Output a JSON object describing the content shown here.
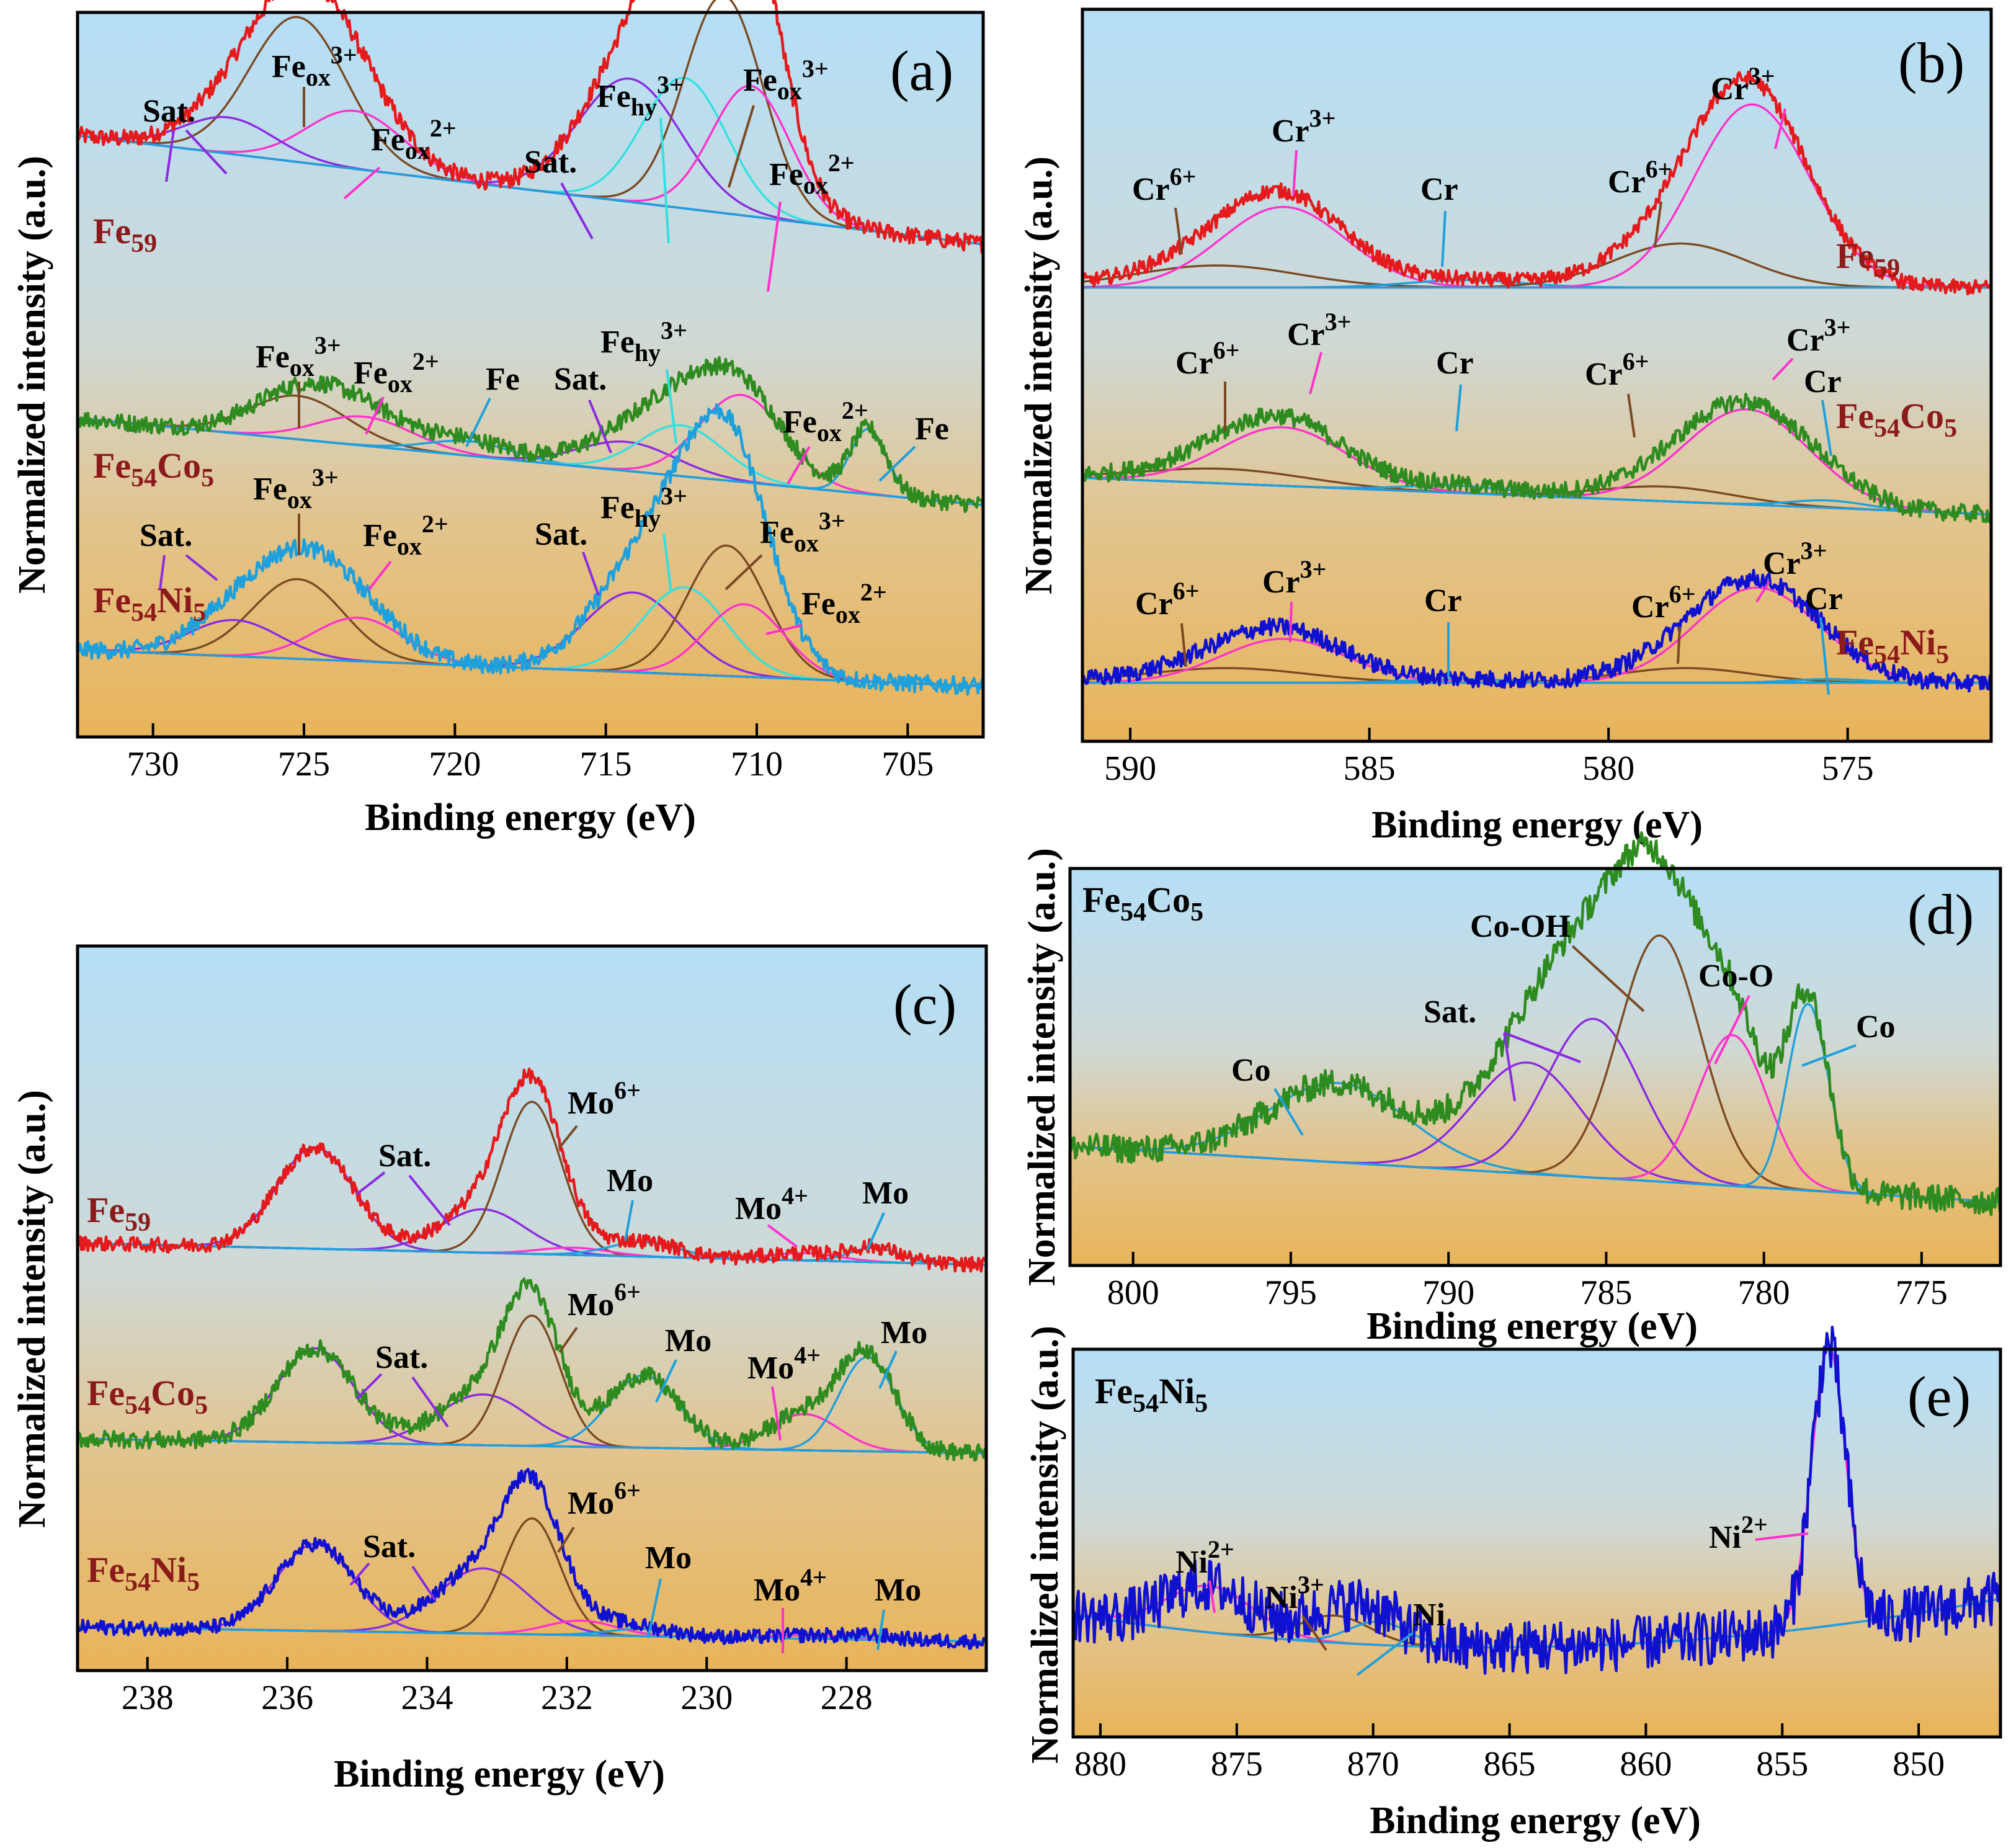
{
  "chart_data": [
    {
      "panel": "(a)",
      "type": "line",
      "xlabel": "Binding energy (eV)",
      "ylabel": "Normalized intensity (a.u.)",
      "xlim": [
        732.5,
        702.5
      ],
      "ticks": [
        730,
        725,
        720,
        715,
        710,
        705
      ],
      "tick_labels": [
        "730",
        "725",
        "720",
        "715",
        "710",
        "705"
      ],
      "series": [
        {
          "name": "Fe59",
          "sub": "59",
          "color": "#e41a1c",
          "offset": 0.68,
          "base_hi": 0.15,
          "base_lo": 0.0,
          "noise": 0.012,
          "peaks": [
            [
              725.2,
              0.2,
              1.6,
              "#7b4a24"
            ],
            [
              723.3,
              0.08,
              1.6,
              "#ff33cc"
            ],
            [
              727.5,
              0.05,
              1.5,
              "#8a2be2"
            ],
            [
              714.2,
              0.17,
              1.7,
              "#8a2be2"
            ],
            [
              712.4,
              0.18,
              1.4,
              "#33e0e0"
            ],
            [
              711.1,
              0.3,
              1.3,
              "#7b4a24"
            ],
            [
              710.2,
              0.18,
              1.3,
              "#ff33cc"
            ]
          ]
        },
        {
          "name": "Fe54Co5",
          "sub": "54",
          "color": "#2e8b1f",
          "offset": 0.38,
          "base_hi": 0.06,
          "base_lo": -0.06,
          "noise": 0.012,
          "peaks": [
            [
              725.2,
              0.06,
              1.6,
              "#7b4a24"
            ],
            [
              723.0,
              0.04,
              1.6,
              "#ff33cc"
            ],
            [
              719.5,
              0.02,
              1.4,
              "#1ea0dc"
            ],
            [
              714.3,
              0.04,
              1.6,
              "#8a2be2"
            ],
            [
              712.5,
              0.07,
              1.4,
              "#33e0e0"
            ],
            [
              710.5,
              0.12,
              1.4,
              "#ff33cc"
            ],
            [
              706.3,
              0.09,
              0.6,
              "#1ea0dc"
            ]
          ]
        },
        {
          "name": "Fe54Ni5",
          "sub": "54",
          "color": "#1ea0dc",
          "offset": 0.1,
          "base_hi": 0.02,
          "base_lo": -0.03,
          "noise": 0.012,
          "peaks": [
            [
              725.2,
              0.11,
              1.5,
              "#7b4a24"
            ],
            [
              723.2,
              0.06,
              1.5,
              "#ff33cc"
            ],
            [
              727.3,
              0.05,
              1.5,
              "#8a2be2"
            ],
            [
              714.1,
              0.11,
              1.6,
              "#8a2be2"
            ],
            [
              712.4,
              0.12,
              1.4,
              "#33e0e0"
            ],
            [
              711.0,
              0.18,
              1.3,
              "#7b4a24"
            ],
            [
              710.4,
              0.1,
              1.3,
              "#ff33cc"
            ]
          ]
        }
      ]
    },
    {
      "panel": "(b)",
      "type": "line",
      "xlabel": "Binding energy (eV)",
      "ylabel": "Normalized intensity (a.u.)",
      "xlim": [
        591.0,
        572.0
      ],
      "ticks": [
        590,
        585,
        580,
        575
      ],
      "tick_labels": [
        "590",
        "585",
        "580",
        "575"
      ],
      "series": [
        {
          "name": "Fe59",
          "sub": "59",
          "color": "#e41a1c",
          "offset": 0.62,
          "base_hi": 0.0,
          "base_lo": 0.0,
          "noise": 0.01,
          "peaks": [
            [
              588.2,
              0.03,
              1.7,
              "#7b4a24"
            ],
            [
              586.8,
              0.11,
              1.3,
              "#ff33cc"
            ],
            [
              583.0,
              0.01,
              1.2,
              "#1ea0dc"
            ],
            [
              578.5,
              0.06,
              1.4,
              "#7b4a24"
            ],
            [
              577.0,
              0.25,
              1.2,
              "#ff33cc"
            ]
          ]
        },
        {
          "name": "Fe54Co5",
          "sub": "54",
          "color": "#2e8b1f",
          "offset": 0.36,
          "base_hi": 0.0,
          "base_lo": -0.05,
          "noise": 0.012,
          "peaks": [
            [
              588.0,
              0.02,
              1.7,
              "#7b4a24"
            ],
            [
              586.8,
              0.08,
              1.3,
              "#ff33cc"
            ],
            [
              583.1,
              0.01,
              1.1,
              "#1ea0dc"
            ],
            [
              578.8,
              0.02,
              1.4,
              "#7b4a24"
            ],
            [
              577.1,
              0.13,
              1.3,
              "#ff33cc"
            ],
            [
              575.4,
              0.01,
              0.8,
              "#1ea0dc"
            ]
          ]
        },
        {
          "name": "Fe54Ni5",
          "sub": "54",
          "color": "#1010d0",
          "offset": 0.08,
          "base_hi": 0.0,
          "base_lo": 0.0,
          "noise": 0.012,
          "peaks": [
            [
              588.0,
              0.02,
              1.7,
              "#7b4a24"
            ],
            [
              586.8,
              0.06,
              1.3,
              "#ff33cc"
            ],
            [
              583.1,
              0.005,
              1.1,
              "#1ea0dc"
            ],
            [
              578.4,
              0.02,
              1.4,
              "#7b4a24"
            ],
            [
              576.9,
              0.13,
              1.3,
              "#ff33cc"
            ],
            [
              575.4,
              0.005,
              0.8,
              "#1ea0dc"
            ]
          ]
        }
      ]
    },
    {
      "panel": "(c)",
      "type": "line",
      "xlabel": "Binding energy (eV)",
      "ylabel": "Normalized intensity (a.u.)",
      "xlim": [
        239.0,
        226.0
      ],
      "ticks": [
        238,
        236,
        234,
        232,
        230,
        228
      ],
      "tick_labels": [
        "238",
        "236",
        "234",
        "232",
        "230",
        "228"
      ],
      "series": [
        {
          "name": "Fe59",
          "sub": "59",
          "color": "#e41a1c",
          "offset": 0.58,
          "base_hi": 0.01,
          "base_lo": -0.02,
          "noise": 0.01,
          "peaks": [
            [
              235.6,
              0.14,
              0.55,
              "#8a2be2"
            ],
            [
              233.2,
              0.06,
              0.6,
              "#8a2be2"
            ],
            [
              232.5,
              0.21,
              0.42,
              "#7b4a24"
            ],
            [
              231.9,
              0.01,
              0.5,
              "#ff33cc"
            ],
            [
              230.9,
              0.02,
              0.5,
              "#1ea0dc"
            ],
            [
              228.6,
              0.01,
              0.5,
              "#ff33cc"
            ],
            [
              227.6,
              0.02,
              0.35,
              "#1ea0dc"
            ]
          ]
        },
        {
          "name": "Fe54Co5",
          "sub": "54",
          "color": "#2e8b1f",
          "offset": 0.31,
          "base_hi": 0.01,
          "base_lo": -0.01,
          "noise": 0.012,
          "peaks": [
            [
              235.6,
              0.13,
              0.55,
              "#8a2be2"
            ],
            [
              233.2,
              0.07,
              0.65,
              "#8a2be2"
            ],
            [
              232.5,
              0.18,
              0.4,
              "#7b4a24"
            ],
            [
              230.9,
              0.1,
              0.5,
              "#1ea0dc"
            ],
            [
              228.6,
              0.05,
              0.5,
              "#ff33cc"
            ],
            [
              227.7,
              0.13,
              0.4,
              "#1ea0dc"
            ]
          ]
        },
        {
          "name": "Fe54Ni5",
          "sub": "54",
          "color": "#1010d0",
          "offset": 0.05,
          "base_hi": 0.01,
          "base_lo": -0.01,
          "noise": 0.01,
          "peaks": [
            [
              235.6,
              0.12,
              0.55,
              "#8a2be2"
            ],
            [
              233.2,
              0.09,
              0.65,
              "#8a2be2"
            ],
            [
              232.5,
              0.16,
              0.4,
              "#7b4a24"
            ],
            [
              231.8,
              0.02,
              0.5,
              "#ff33cc"
            ],
            [
              230.9,
              0.01,
              0.5,
              "#1ea0dc"
            ],
            [
              228.5,
              0.005,
              0.5,
              "#ff33cc"
            ],
            [
              227.6,
              0.005,
              0.35,
              "#1ea0dc"
            ]
          ]
        }
      ]
    },
    {
      "panel": "(d)",
      "type": "line",
      "title": "Fe54Co5",
      "xlabel": "Binding energy (eV)",
      "ylabel": "Normalized intensity (a.u.)",
      "xlim": [
        802.0,
        772.5
      ],
      "ticks": [
        800,
        795,
        790,
        785,
        780,
        775
      ],
      "tick_labels": [
        "800",
        "795",
        "790",
        "785",
        "780",
        "775"
      ],
      "series": [
        {
          "name": "Fe54Co5",
          "color": "#2e8b1f",
          "offset": 0.22,
          "base_hi": 0.08,
          "base_lo": -0.06,
          "noise": 0.035,
          "peaks": [
            [
              793.5,
              0.2,
              2.2,
              "#1ea0dc"
            ],
            [
              787.5,
              0.28,
              1.7,
              "#8a2be2"
            ],
            [
              785.4,
              0.4,
              1.5,
              "#8a2be2"
            ],
            [
              783.3,
              0.62,
              1.3,
              "#7b4a24"
            ],
            [
              781.0,
              0.38,
              1.1,
              "#ff33cc"
            ],
            [
              778.6,
              0.47,
              0.65,
              "#1ea0dc"
            ]
          ]
        }
      ]
    },
    {
      "panel": "(e)",
      "type": "line",
      "title": "Fe54Ni5",
      "xlabel": "Binding energy (eV)",
      "ylabel": "Normalized intensity (a.u.)",
      "xlim": [
        881.0,
        847.0
      ],
      "ticks": [
        880,
        875,
        870,
        865,
        860,
        855,
        850
      ],
      "tick_labels": [
        "880",
        "875",
        "870",
        "865",
        "860",
        "855",
        "850"
      ],
      "series": [
        {
          "name": "Fe54Ni5",
          "color": "#1010d0",
          "offset": 0.22,
          "base_hi": 0.02,
          "base_lo": 0.0,
          "noise": 0.07,
          "trend_x": 866.5,
          "trend_k": 0.0012,
          "peaks": [
            [
              876.0,
              0.12,
              1.6,
              "#ff33cc"
            ],
            [
              871.4,
              0.07,
              1.3,
              "#7b4a24"
            ],
            [
              869.8,
              0.06,
              1.1,
              "#1ea0dc"
            ],
            [
              853.3,
              0.72,
              0.62,
              "#ff33cc"
            ]
          ]
        }
      ]
    }
  ],
  "labels": {
    "xlabel": "Binding energy (eV)",
    "ylabel": "Normalized intensity (a.u.)",
    "ylabel_small": "Normalized intensity (a.u.)",
    "panel_a": "(a)",
    "panel_b": "(b)",
    "panel_c": "(c)",
    "panel_d": "(d)",
    "panel_e": "(e)",
    "fe": "Fe",
    "co": "Co",
    "ni": "Ni",
    "n59": "59",
    "n54": "54",
    "n5": "5",
    "sat": "Sat.",
    "ox": "ox",
    "hy": "hy",
    "p3": "3+",
    "p2": "2+",
    "p6": "6+",
    "p4": "4+",
    "cr": "Cr",
    "mo": "Mo",
    "co_oh": "Co-OH",
    "co_o": "Co-O"
  }
}
